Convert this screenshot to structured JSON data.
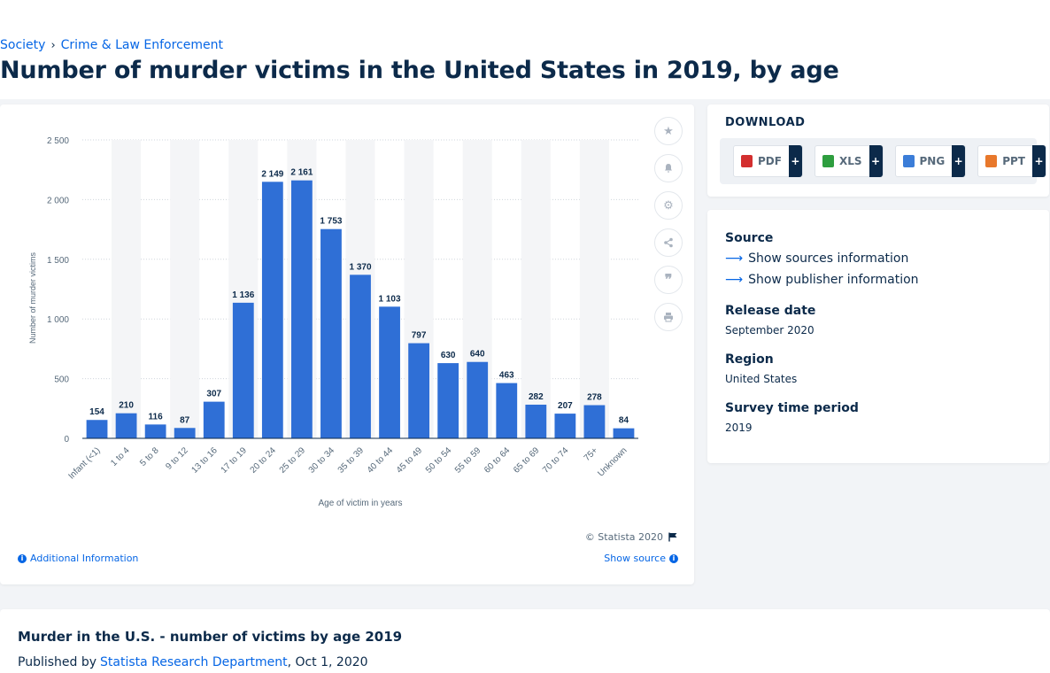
{
  "breadcrumb": {
    "items": [
      "Society",
      "Crime & Law Enforcement"
    ],
    "separator": "›"
  },
  "page_title": "Number of murder victims in the United States in 2019, by age",
  "chart_card": {
    "copyright": "© Statista 2020",
    "additional_info": "Additional Information",
    "show_source": "Show source",
    "side_buttons": [
      "star-icon",
      "bell-icon",
      "gear-icon",
      "share-icon",
      "quote-icon",
      "print-icon"
    ]
  },
  "download": {
    "title": "DOWNLOAD",
    "formats": [
      {
        "label": "PDF",
        "color": "#d32f2f"
      },
      {
        "label": "XLS",
        "color": "#2e9e3f"
      },
      {
        "label": "PNG",
        "color": "#3b7dd8"
      },
      {
        "label": "PPT",
        "color": "#e8782b"
      }
    ],
    "plus": "+"
  },
  "meta": {
    "source_label": "Source",
    "sources_link": "Show sources information",
    "publisher_link": "Show publisher information",
    "release_label": "Release date",
    "release_value": "September 2020",
    "region_label": "Region",
    "region_value": "United States",
    "survey_label": "Survey time period",
    "survey_value": "2019"
  },
  "bottom": {
    "title": "Murder in the U.S. - number of victims by age 2019",
    "published_prefix": "Published by",
    "publisher": "Statista Research Department",
    "date": ", Oct 1, 2020"
  },
  "colors": {
    "bar": "#2f6fd6",
    "accent": "#0666e5",
    "navy": "#0c2a4a"
  },
  "chart_data": {
    "type": "bar",
    "categories": [
      "Infant (<1)",
      "1 to 4",
      "5 to 8",
      "9 to 12",
      "13 to 16",
      "17 to 19",
      "20 to 24",
      "25 to 29",
      "30 to 34",
      "35 to 39",
      "40 to 44",
      "45 to 49",
      "50 to 54",
      "55 to 59",
      "60 to 64",
      "65 to 69",
      "70 to 74",
      "75+",
      "Unknown"
    ],
    "values": [
      154,
      210,
      116,
      87,
      307,
      1136,
      2149,
      2161,
      1753,
      1370,
      1103,
      797,
      630,
      640,
      463,
      282,
      207,
      278,
      84
    ],
    "value_labels": [
      "154",
      "210",
      "116",
      "87",
      "307",
      "1 136",
      "2 149",
      "2 161",
      "1 753",
      "1 370",
      "1 103",
      "797",
      "630",
      "640",
      "463",
      "282",
      "207",
      "278",
      "84"
    ],
    "yticks": [
      0,
      500,
      1000,
      1500,
      2000,
      2500
    ],
    "ytick_labels": [
      "0",
      "500",
      "1 000",
      "1 500",
      "2 000",
      "2 500"
    ],
    "ylim": [
      0,
      2500
    ],
    "xlabel": "Age of victim in years",
    "ylabel": "Number of murder victims",
    "grid": true
  }
}
